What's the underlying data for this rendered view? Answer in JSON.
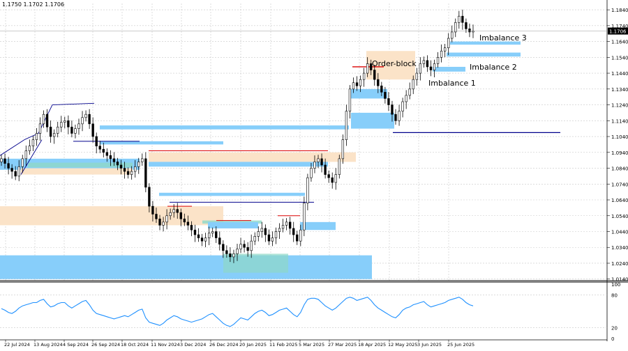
{
  "header": {
    "ohlc_text": "1.1750 1.1702 1.1706"
  },
  "colors": {
    "candle": "#000000",
    "grid": "#c8c8c8",
    "imbalance": "#87cefa",
    "order_block": "#fbe3c8",
    "teal_zone": "#8ed8c8",
    "structure_line": "#00008b",
    "red_line": "#dc0000",
    "rsi_line": "#1e90ff",
    "price_tag_bg": "#000000"
  },
  "chart_data": {
    "type": "candlestick",
    "y_ticks": [
      "1.1840",
      "1.1740",
      "1.1640",
      "1.1540",
      "1.1440",
      "1.1340",
      "1.1240",
      "1.1140",
      "1.1040",
      "1.0940",
      "1.0840",
      "1.0740",
      "1.0640",
      "1.0540",
      "1.0440",
      "1.0340",
      "1.0240",
      "1.0140"
    ],
    "ylim": [
      1.013,
      1.188
    ],
    "current_price": "1.1706",
    "x_ticks": [
      "22 Jul 2024",
      "13 Aug 2024",
      "4 Sep 2024",
      "26 Sep 2024",
      "18 Oct 2024",
      "11 Nov 2024",
      "3 Dec 2024",
      "26 Dec 2024",
      "20 Jan 2025",
      "11 Feb 2025",
      "5 Mar 2025",
      "27 Mar 2025",
      "18 Apr 2025",
      "12 May 2025",
      "3 Jun 2025",
      "25 Jun 2025"
    ],
    "closes": [
      1.09,
      1.087,
      1.084,
      1.082,
      1.079,
      1.085,
      1.09,
      1.095,
      1.098,
      1.102,
      1.106,
      1.112,
      1.118,
      1.11,
      1.104,
      1.106,
      1.11,
      1.113,
      1.114,
      1.11,
      1.106,
      1.109,
      1.112,
      1.116,
      1.118,
      1.112,
      1.104,
      1.098,
      1.096,
      1.094,
      1.092,
      1.09,
      1.088,
      1.086,
      1.084,
      1.082,
      1.08,
      1.082,
      1.085,
      1.088,
      1.09,
      1.072,
      1.06,
      1.055,
      1.052,
      1.048,
      1.05,
      1.054,
      1.056,
      1.058,
      1.056,
      1.052,
      1.05,
      1.048,
      1.045,
      1.042,
      1.04,
      1.038,
      1.04,
      1.043,
      1.044,
      1.04,
      1.036,
      1.032,
      1.03,
      1.028,
      1.03,
      1.033,
      1.036,
      1.034,
      1.032,
      1.038,
      1.041,
      1.044,
      1.046,
      1.042,
      1.038,
      1.04,
      1.044,
      1.046,
      1.048,
      1.05,
      1.046,
      1.042,
      1.038,
      1.045,
      1.062,
      1.078,
      1.084,
      1.088,
      1.09,
      1.086,
      1.08,
      1.078,
      1.075,
      1.08,
      1.09,
      1.102,
      1.12,
      1.134,
      1.138,
      1.136,
      1.14,
      1.144,
      1.15,
      1.146,
      1.14,
      1.136,
      1.132,
      1.128,
      1.124,
      1.118,
      1.114,
      1.12,
      1.126,
      1.13,
      1.134,
      1.14,
      1.144,
      1.15,
      1.152,
      1.148,
      1.146,
      1.15,
      1.154,
      1.158,
      1.16,
      1.166,
      1.17,
      1.176,
      1.18,
      1.176,
      1.172,
      1.17,
      1.1706
    ],
    "rsi": {
      "ylim": [
        0,
        100
      ],
      "y_ticks": [
        "100",
        "80",
        "20",
        "0"
      ],
      "values": [
        55,
        52,
        48,
        46,
        50,
        56,
        60,
        62,
        64,
        66,
        66,
        70,
        72,
        64,
        58,
        60,
        64,
        66,
        66,
        60,
        56,
        60,
        64,
        68,
        70,
        62,
        52,
        46,
        44,
        42,
        40,
        38,
        36,
        38,
        40,
        42,
        40,
        44,
        48,
        52,
        54,
        38,
        30,
        28,
        26,
        24,
        28,
        34,
        38,
        42,
        40,
        36,
        34,
        32,
        30,
        32,
        34,
        36,
        40,
        44,
        46,
        40,
        34,
        28,
        24,
        22,
        26,
        32,
        38,
        36,
        34,
        40,
        46,
        50,
        52,
        48,
        42,
        44,
        48,
        52,
        54,
        56,
        50,
        44,
        40,
        48,
        62,
        72,
        74,
        74,
        72,
        66,
        60,
        56,
        52,
        56,
        62,
        68,
        74,
        76,
        74,
        70,
        72,
        74,
        76,
        70,
        62,
        56,
        52,
        48,
        44,
        40,
        38,
        44,
        52,
        56,
        58,
        62,
        64,
        66,
        68,
        62,
        58,
        60,
        62,
        64,
        66,
        70,
        72,
        74,
        76,
        72,
        66,
        62,
        60
      ]
    },
    "annotations": {
      "order_block": "Order-block",
      "imbalance_1": "Imbalance 1",
      "imbalance_2": "Imbalance 2",
      "imbalance_3": "Imbalance 3"
    }
  }
}
